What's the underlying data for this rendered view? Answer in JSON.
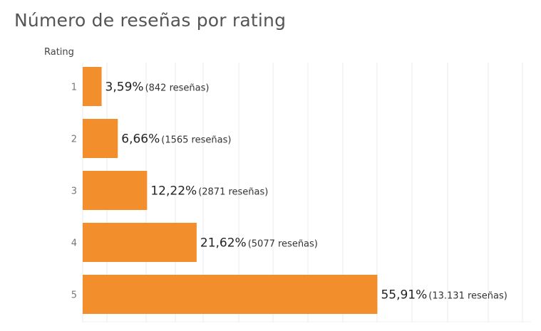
{
  "chart_data": {
    "type": "bar",
    "orientation": "horizontal",
    "title": "Número de reseñas por rating",
    "ylabel": "Rating",
    "xlabel": "",
    "categories": [
      "1",
      "2",
      "3",
      "4",
      "5"
    ],
    "values": [
      3.59,
      6.66,
      12.22,
      21.62,
      55.91
    ],
    "value_labels": [
      "3,59%",
      "6,66%",
      "12,22%",
      "21,62%",
      "55,91%"
    ],
    "count_labels": [
      "(842 reseñas)",
      "(1565 reseñas)",
      "(2871 reseñas)",
      "(5077 reseñas)",
      "(13.131 reseñas)"
    ],
    "xlim": [
      0,
      85
    ],
    "grid": true,
    "bar_color": "#F28E2B",
    "grid_color": "#ebebeb"
  }
}
